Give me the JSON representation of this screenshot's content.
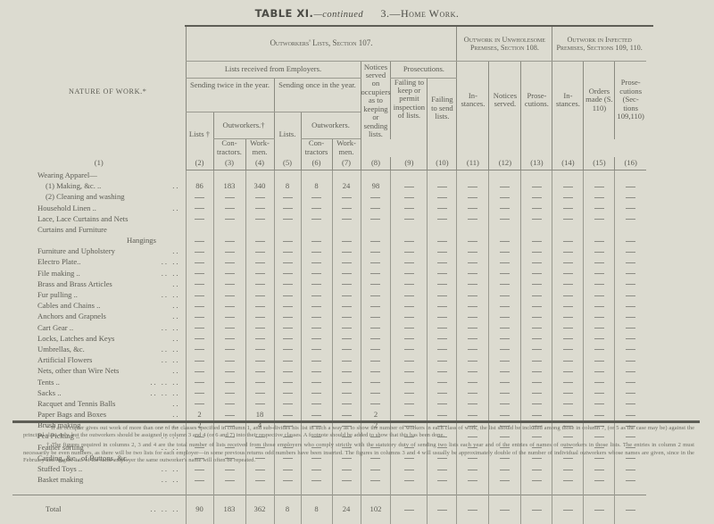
{
  "header": {
    "table_label": "TABLE XI.",
    "continued": "—continued",
    "section": "3.—Home Work."
  },
  "columns": {
    "nature_of_work": "NATURE OF WORK.*",
    "outworkers_lists": "Outworkers' Lists, Section 107.",
    "unwholesome": "Outwork in Unwholesome Premises, Section 108.",
    "infected": "Outwork in Infected Premises, Sections 109, 110.",
    "lists_received": "Lists received from Employers.",
    "notices_served": "Notices served on occupiers as to keeping or sending lists.",
    "prosecutions": "Prosecutions.",
    "sending_twice": "Sending twice in the year.",
    "sending_once": "Sending once in the year.",
    "failing_keep": "Failing to keep or permit inspection of lists.",
    "failing_send": "Failing to send lists.",
    "instances_108": "In-stances.",
    "notices_108": "Notices served.",
    "prosecutions_108": "Prose-cutions.",
    "instances_109": "In-stances.",
    "orders_made": "Orders made (S. 110)",
    "prosecutions_109": "Prose-cutions (Sec-tions 109,110)",
    "lists_dagger": "Lists †",
    "outworkers_dagger": "Outworkers.†",
    "lists_once": "Lists.",
    "outworkers_once": "Outworkers.",
    "contractors": "Con-tractors.",
    "workmen": "Work-men.",
    "contractors2": "Con-tractors",
    "workmen2": "Work-men.",
    "numbers": [
      "(1)",
      "(2)",
      "(3)",
      "(4)",
      "(5)",
      "(6)",
      "(7)",
      "(8)",
      "(9)",
      "(10)",
      "(11)",
      "(12)",
      "(13)",
      "(14)",
      "(15)",
      "(16)"
    ]
  },
  "rows": [
    {
      "label": "Wearing Apparel—",
      "indent": 0,
      "dots": "",
      "heading": true
    },
    {
      "label": "(1) Making, &c. ..",
      "indent": 1,
      "dots": "..",
      "values": [
        "86",
        "183",
        "340",
        "8",
        "8",
        "24",
        "98",
        "—",
        "—",
        "—",
        "—",
        "—",
        "—",
        "—",
        "—"
      ]
    },
    {
      "label": "(2) Cleaning and washing",
      "indent": 1,
      "dots": "",
      "values": [
        "—",
        "—",
        "—",
        "—",
        "—",
        "—",
        "—",
        "—",
        "—",
        "—",
        "—",
        "—",
        "—",
        "—",
        "—"
      ]
    },
    {
      "label": "Household Linen ..",
      "indent": 0,
      "dots": "..",
      "values": [
        "—",
        "—",
        "—",
        "—",
        "—",
        "—",
        "—",
        "—",
        "—",
        "—",
        "—",
        "—",
        "—",
        "—",
        "—"
      ]
    },
    {
      "label": "Lace, Lace Curtains and Nets",
      "indent": 0,
      "dots": "",
      "values": [
        "—",
        "—",
        "—",
        "—",
        "—",
        "—",
        "—",
        "—",
        "—",
        "—",
        "—",
        "—",
        "—",
        "—",
        "—"
      ]
    },
    {
      "label": "Curtains and Furniture",
      "indent": 0,
      "dots": "",
      "heading": true
    },
    {
      "label": "Hangings",
      "indent": 2,
      "dots": "",
      "values": [
        "—",
        "—",
        "—",
        "—",
        "—",
        "—",
        "—",
        "—",
        "—",
        "—",
        "—",
        "—",
        "—",
        "—",
        "—"
      ]
    },
    {
      "label": "Furniture and Upholstery",
      "indent": 0,
      "dots": "..",
      "values": [
        "—",
        "—",
        "—",
        "—",
        "—",
        "—",
        "—",
        "—",
        "—",
        "—",
        "—",
        "—",
        "—",
        "—",
        "—"
      ]
    },
    {
      "label": "Electro Plate..",
      "indent": 0,
      "dots": "..   ..",
      "values": [
        "—",
        "—",
        "—",
        "—",
        "—",
        "—",
        "—",
        "—",
        "—",
        "—",
        "—",
        "—",
        "—",
        "—",
        "—"
      ]
    },
    {
      "label": "File making ..",
      "indent": 0,
      "dots": "..   ..",
      "values": [
        "—",
        "—",
        "—",
        "—",
        "—",
        "—",
        "—",
        "—",
        "—",
        "—",
        "—",
        "—",
        "—",
        "—",
        "—"
      ]
    },
    {
      "label": "Brass and Brass Articles",
      "indent": 0,
      "dots": "..",
      "values": [
        "—",
        "—",
        "—",
        "—",
        "—",
        "—",
        "—",
        "—",
        "—",
        "—",
        "—",
        "—",
        "—",
        "—",
        "—"
      ]
    },
    {
      "label": "Fur pulling ..",
      "indent": 0,
      "dots": "..   ..",
      "values": [
        "—",
        "—",
        "—",
        "—",
        "—",
        "—",
        "—",
        "—",
        "—",
        "—",
        "—",
        "—",
        "—",
        "—",
        "—"
      ]
    },
    {
      "label": "Cables and Chains ..",
      "indent": 0,
      "dots": "..",
      "values": [
        "—",
        "—",
        "—",
        "—",
        "—",
        "—",
        "—",
        "—",
        "—",
        "—",
        "—",
        "—",
        "—",
        "—",
        "—"
      ]
    },
    {
      "label": "Anchors and Grapnels",
      "indent": 0,
      "dots": "..",
      "values": [
        "—",
        "—",
        "—",
        "—",
        "—",
        "—",
        "—",
        "—",
        "—",
        "—",
        "—",
        "—",
        "—",
        "—",
        "—"
      ]
    },
    {
      "label": "Cart Gear ..",
      "indent": 0,
      "dots": "..   ..",
      "values": [
        "—",
        "—",
        "—",
        "—",
        "—",
        "—",
        "—",
        "—",
        "—",
        "—",
        "—",
        "—",
        "—",
        "—",
        "—"
      ]
    },
    {
      "label": "Locks, Latches and Keys",
      "indent": 0,
      "dots": "..",
      "values": [
        "—",
        "—",
        "—",
        "—",
        "—",
        "—",
        "—",
        "—",
        "—",
        "—",
        "—",
        "—",
        "—",
        "—",
        "—"
      ]
    },
    {
      "label": "Umbrellas, &c.",
      "indent": 0,
      "dots": "..   ..",
      "values": [
        "—",
        "—",
        "—",
        "—",
        "—",
        "—",
        "—",
        "—",
        "—",
        "—",
        "—",
        "—",
        "—",
        "—",
        "—"
      ]
    },
    {
      "label": "Artificial Flowers",
      "indent": 0,
      "dots": "..   ..",
      "values": [
        "—",
        "—",
        "—",
        "—",
        "—",
        "—",
        "—",
        "—",
        "—",
        "—",
        "—",
        "—",
        "—",
        "—",
        "—"
      ]
    },
    {
      "label": "Nets, other than Wire Nets",
      "indent": 0,
      "dots": "..",
      "values": [
        "—",
        "—",
        "—",
        "—",
        "—",
        "—",
        "—",
        "—",
        "—",
        "—",
        "—",
        "—",
        "—",
        "—",
        "—"
      ]
    },
    {
      "label": "Tents ..",
      "indent": 0,
      "dots": "..   ..   ..",
      "values": [
        "—",
        "—",
        "—",
        "—",
        "—",
        "—",
        "—",
        "—",
        "—",
        "—",
        "—",
        "—",
        "—",
        "—",
        "—"
      ]
    },
    {
      "label": "Sacks ..",
      "indent": 0,
      "dots": "..   ..   ..",
      "values": [
        "—",
        "—",
        "—",
        "—",
        "—",
        "—",
        "—",
        "—",
        "—",
        "—",
        "—",
        "—",
        "—",
        "—",
        "—"
      ]
    },
    {
      "label": "Racquet and Tennis Balls",
      "indent": 0,
      "dots": "..",
      "values": [
        "—",
        "—",
        "—",
        "—",
        "—",
        "—",
        "—",
        "—",
        "—",
        "—",
        "—",
        "—",
        "—",
        "—",
        "—"
      ]
    },
    {
      "label": "Paper Bags and Boxes",
      "indent": 0,
      "dots": "..",
      "values": [
        "2",
        "—",
        "18",
        "—",
        "—",
        "—",
        "2",
        "—",
        "—",
        "—",
        "—",
        "—",
        "—",
        "—",
        "—"
      ]
    },
    {
      "label": "Brush making",
      "indent": 0,
      "dots": "..   ..",
      "values": [
        "2",
        "—",
        "4",
        "—",
        "—",
        "—",
        "2",
        "—",
        "—",
        "—",
        "—",
        "—",
        "—",
        "—",
        "—"
      ]
    },
    {
      "label": "Pea Picking ..",
      "indent": 0,
      "dots": "..   ..",
      "values": [
        "—",
        "—",
        "—",
        "—",
        "—",
        "—",
        "—",
        "—",
        "—",
        "—",
        "—",
        "—",
        "—",
        "—",
        "—"
      ]
    },
    {
      "label": "Feather sorting",
      "indent": 0,
      "dots": "..   ..",
      "values": [
        "—",
        "—",
        "—",
        "—",
        "—",
        "—",
        "—",
        "—",
        "—",
        "—",
        "—",
        "—",
        "—",
        "—",
        "—"
      ]
    },
    {
      "label": "Carding, &c., of Buttons, &c.",
      "indent": 0,
      "dots": "",
      "values": [
        "—",
        "—",
        "—",
        "—",
        "—",
        "—",
        "—",
        "—",
        "—",
        "—",
        "—",
        "—",
        "—",
        "—",
        "—"
      ]
    },
    {
      "label": "Stuffed Toys ..",
      "indent": 0,
      "dots": "..   ..",
      "values": [
        "—",
        "—",
        "—",
        "—",
        "—",
        "—",
        "—",
        "—",
        "—",
        "—",
        "—",
        "—",
        "—",
        "—",
        "—"
      ]
    },
    {
      "label": "Basket making",
      "indent": 0,
      "dots": "..   ..",
      "values": [
        "—",
        "—",
        "—",
        "—",
        "—",
        "—",
        "—",
        "—",
        "—",
        "—",
        "—",
        "—",
        "—",
        "—",
        "—"
      ]
    }
  ],
  "total": {
    "label": "Total",
    "dots": "..   ..   ..",
    "values": [
      "90",
      "183",
      "362",
      "8",
      "8",
      "24",
      "102",
      "—",
      "—",
      "—",
      "—",
      "—",
      "—",
      "—",
      "—"
    ]
  },
  "footnotes": [
    "* If an occupier gives out work of more than one of the classes specified in column 1, and sub-divides his list in such a way as to show the number of workers in each class of work, the list should be included among those in column 7, (or 5 as the case may be) against the principal class only, but the outworkers should be assigned in column 3 and 4 (or 6 and 7) into their respective classes. A footnote should be added to show that this has been done.",
    "† The figures required in columns 2, 3 and 4 are the total number of lists received from those employers who comply strictly with the statutory duty of sending two lists each year and of the entries of names of outworkers in those lists. The entries in column 2 must necessarily be even numbers, as there will be two lists for each employer—in some previous returns odd numbers have been inserted. The figures in columns 3 and 4 will usually be approximately double of the number of individual outworkers whose names are given, since in the February and August lists of the same employer the same outworker's name will often be repeated."
  ]
}
